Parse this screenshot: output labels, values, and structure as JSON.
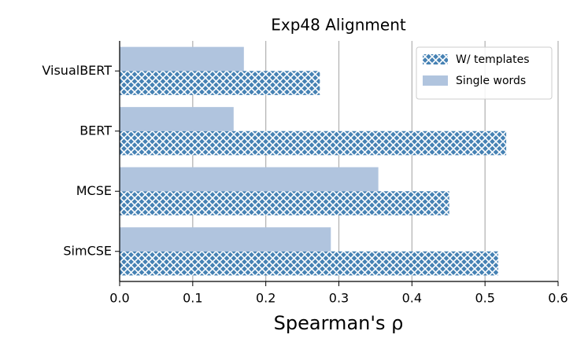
{
  "chart_data": {
    "type": "barh",
    "title": "Exp48 Alignment",
    "x_label": "Spearman's ρ",
    "categories": [
      "VisualBERT",
      "BERT",
      "MCSE",
      "SimCSE"
    ],
    "series": [
      {
        "name": "W/ templates",
        "color": "#4682b4",
        "hatch": "xx",
        "values": [
          0.274,
          0.529,
          0.451,
          0.518
        ]
      },
      {
        "name": "Single words",
        "color": "#b0c4de",
        "values": [
          0.17,
          0.156,
          0.354,
          0.289
        ]
      }
    ],
    "xlim": [
      0,
      0.6
    ],
    "xticks": [
      {
        "value": 0,
        "label": "0.0"
      },
      0.1,
      0.2,
      0.3,
      0.4,
      0.5,
      0.6
    ],
    "grid": true,
    "legend": "upper right"
  }
}
